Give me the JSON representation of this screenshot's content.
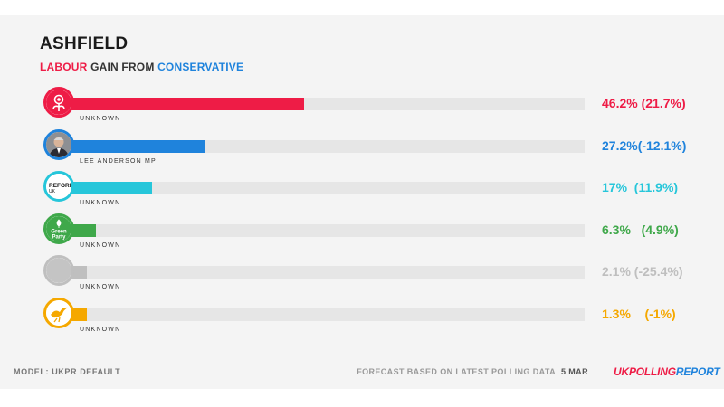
{
  "header": {
    "title": "ASHFIELD",
    "result_gain": "LABOUR",
    "result_mid": " GAIN FROM ",
    "result_from": "CONSERVATIVE"
  },
  "chart_data": {
    "type": "bar",
    "orientation": "horizontal",
    "xlim": [
      0,
      100
    ],
    "grid": false,
    "legend": "none",
    "series": [
      {
        "candidate": "UNKNOWN",
        "value": 46.2,
        "change": 21.7,
        "result_text": "46.2% (21.7%)",
        "color": "#ee1c46",
        "icon": "labour-rose-icon"
      },
      {
        "candidate": "LEE ANDERSON MP",
        "value": 27.2,
        "change": -12.1,
        "result_text": "27.2%(-12.1%)",
        "color": "#1f83dc",
        "icon": "candidate-photo-icon"
      },
      {
        "candidate": "UNKNOWN",
        "value": 17,
        "change": 11.9,
        "result_text": "17%  (11.9%)",
        "color": "#26c6da",
        "icon": "reform-uk-icon",
        "icon_text": "REFORM",
        "icon_subtext": "UK"
      },
      {
        "candidate": "UNKNOWN",
        "value": 6.3,
        "change": 4.9,
        "result_text": "6.3%   (4.9%)",
        "color": "#3fa84a",
        "icon": "green-party-icon",
        "icon_text": "Green",
        "icon_subtext": "Party"
      },
      {
        "candidate": "UNKNOWN",
        "value": 2.1,
        "change": -25.4,
        "result_text": "2.1% (-25.4%)",
        "color": "#bfbfbf",
        "icon": "blank-party-icon"
      },
      {
        "candidate": "UNKNOWN",
        "value": 1.3,
        "change": -1,
        "result_text": "1.3%    (-1%)",
        "color": "#f5a800",
        "icon": "libdem-bird-icon"
      }
    ]
  },
  "colors": {
    "labour": "#ee1c46",
    "conservative": "#1f83dc"
  },
  "footer": {
    "model": "MODEL:  UKPR DEFAULT",
    "forecast": "FORECAST BASED ON LATEST POLLING DATA",
    "date": "5 MAR",
    "brand_part1": "UK",
    "brand_part2": "POLLING",
    "brand_part3": "REPORT"
  }
}
